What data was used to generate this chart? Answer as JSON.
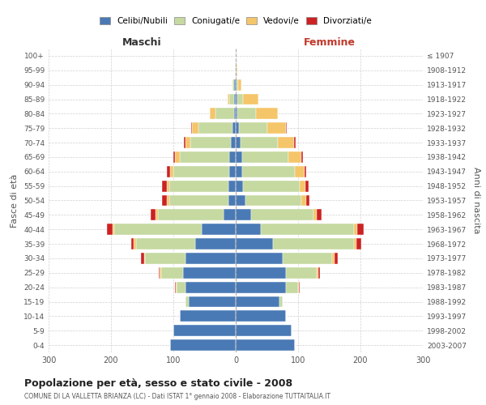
{
  "age_groups": [
    "0-4",
    "5-9",
    "10-14",
    "15-19",
    "20-24",
    "25-29",
    "30-34",
    "35-39",
    "40-44",
    "45-49",
    "50-54",
    "55-59",
    "60-64",
    "65-69",
    "70-74",
    "75-79",
    "80-84",
    "85-89",
    "90-94",
    "95-99",
    "100+"
  ],
  "birth_years": [
    "2003-2007",
    "1998-2002",
    "1993-1997",
    "1988-1992",
    "1983-1987",
    "1978-1982",
    "1973-1977",
    "1968-1972",
    "1963-1967",
    "1958-1962",
    "1953-1957",
    "1948-1952",
    "1943-1947",
    "1938-1942",
    "1933-1937",
    "1928-1932",
    "1923-1927",
    "1918-1922",
    "1913-1917",
    "1908-1912",
    "≤ 1907"
  ],
  "male_celibi": [
    105,
    100,
    90,
    75,
    80,
    85,
    80,
    65,
    55,
    20,
    12,
    12,
    10,
    10,
    8,
    5,
    3,
    2,
    2,
    0,
    0
  ],
  "male_coniugati": [
    0,
    0,
    0,
    5,
    15,
    35,
    65,
    95,
    140,
    105,
    95,
    95,
    90,
    80,
    65,
    55,
    30,
    8,
    3,
    1,
    0
  ],
  "male_vedovi": [
    0,
    0,
    0,
    0,
    1,
    2,
    2,
    3,
    3,
    3,
    3,
    3,
    5,
    8,
    8,
    10,
    8,
    3,
    0,
    0,
    0
  ],
  "male_divorziati": [
    0,
    0,
    0,
    0,
    1,
    2,
    5,
    5,
    8,
    8,
    8,
    8,
    5,
    2,
    2,
    1,
    0,
    0,
    0,
    0,
    0
  ],
  "female_celibi": [
    95,
    90,
    80,
    70,
    80,
    80,
    75,
    60,
    40,
    25,
    15,
    12,
    10,
    10,
    8,
    5,
    3,
    2,
    1,
    0,
    0
  ],
  "female_coniugati": [
    0,
    0,
    0,
    5,
    20,
    50,
    80,
    130,
    150,
    100,
    90,
    90,
    85,
    75,
    60,
    45,
    30,
    10,
    3,
    1,
    0
  ],
  "female_vedovi": [
    0,
    0,
    0,
    0,
    1,
    2,
    3,
    3,
    5,
    5,
    8,
    10,
    15,
    20,
    25,
    30,
    35,
    25,
    5,
    2,
    0
  ],
  "female_divorziati": [
    0,
    0,
    0,
    0,
    1,
    3,
    5,
    8,
    10,
    8,
    5,
    5,
    3,
    3,
    3,
    2,
    0,
    0,
    0,
    0,
    0
  ],
  "color_celibi": "#4a7ab5",
  "color_coniugati": "#c5d9a0",
  "color_vedovi": "#f5c56a",
  "color_divorziati": "#cc2222",
  "title_main": "Popolazione per età, sesso e stato civile - 2008",
  "title_sub": "COMUNE DI LA VALLETTA BRIANZA (LC) - Dati ISTAT 1° gennaio 2008 - Elaborazione TUTTAITALIA.IT",
  "ylabel_left": "Fasce di età",
  "ylabel_right": "Anni di nascita",
  "xlabel_left": "Maschi",
  "xlabel_right": "Femmine",
  "xlim": 300,
  "bg_color": "#ffffff",
  "grid_color": "#cccccc"
}
